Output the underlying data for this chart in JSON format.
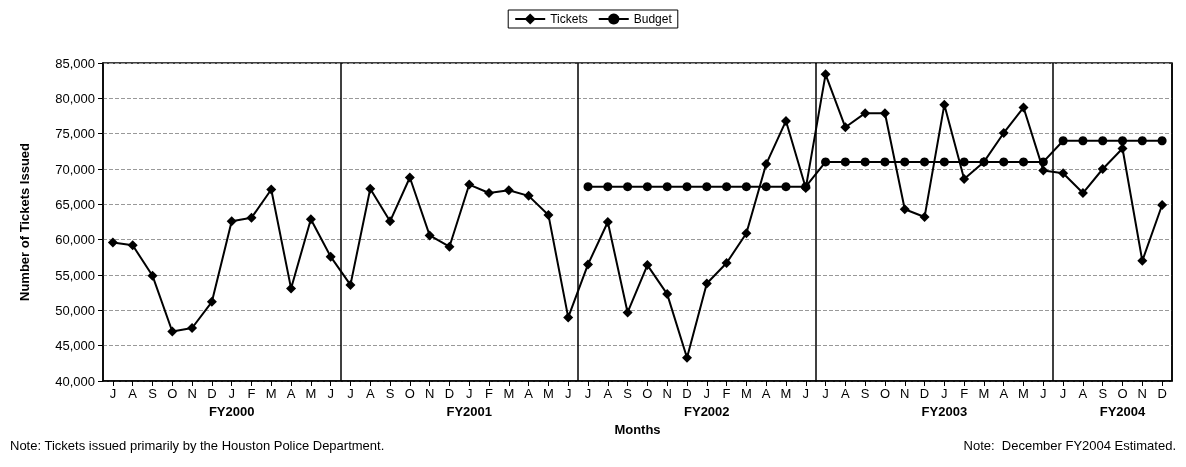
{
  "chart_data": {
    "type": "line",
    "xlabel": "Months",
    "ylabel": "Number of Tickets Issued",
    "legend": "top",
    "grid": "y",
    "categories": [
      "J",
      "A",
      "S",
      "O",
      "N",
      "D",
      "J",
      "F",
      "M",
      "A",
      "M",
      "J",
      "J",
      "A",
      "S",
      "O",
      "N",
      "D",
      "J",
      "F",
      "M",
      "A",
      "M",
      "J",
      "J",
      "A",
      "S",
      "O",
      "N",
      "D",
      "J",
      "F",
      "M",
      "A",
      "M",
      "J",
      "J",
      "A",
      "S",
      "O",
      "N",
      "D",
      "J",
      "F",
      "M",
      "A",
      "M",
      "J",
      "J",
      "A",
      "S",
      "O",
      "N",
      "D"
    ],
    "ylim": [
      40000,
      85000
    ],
    "yticks": [
      {
        "value": 40000,
        "label": "40,000"
      },
      {
        "value": 45000,
        "label": "45,000"
      },
      {
        "value": 50000,
        "label": "50,000"
      },
      {
        "value": 55000,
        "label": "55,000"
      },
      {
        "value": 60000,
        "label": "60,000"
      },
      {
        "value": 65000,
        "label": "65,000"
      },
      {
        "value": 70000,
        "label": "70,000"
      },
      {
        "value": 75000,
        "label": "75,000"
      },
      {
        "value": 80000,
        "label": "80,000"
      },
      {
        "value": 85000,
        "label": "85,000"
      }
    ],
    "annotations": [
      "FY2000",
      "FY2001",
      "FY2002",
      "FY2003",
      "FY2004",
      "Note: Tickets issued primarily by the Houston Police Department.",
      "Note:  December FY2004 Estimated."
    ],
    "series": [
      {
        "name": "Tickets",
        "color": "#000000",
        "marker": "diamond",
        "values": [
          59600,
          59200,
          54900,
          47000,
          47500,
          51200,
          62600,
          63100,
          67100,
          53100,
          62900,
          57600,
          53600,
          67200,
          62600,
          68800,
          60600,
          59000,
          67800,
          66600,
          67000,
          66200,
          63500,
          49000,
          56500,
          62500,
          49700,
          56400,
          52300,
          43300,
          53800,
          56700,
          60900,
          70700,
          76800,
          67300,
          83400,
          75900,
          77900,
          77900,
          64300,
          63200,
          79100,
          68600,
          71000,
          75100,
          78700,
          69800,
          69400,
          66600,
          70000,
          72900,
          57000,
          64900
        ]
      },
      {
        "name": "Budget",
        "color": "#000000",
        "marker": "circle",
        "values": [
          null,
          null,
          null,
          null,
          null,
          null,
          null,
          null,
          null,
          null,
          null,
          null,
          null,
          null,
          null,
          null,
          null,
          null,
          null,
          null,
          null,
          null,
          null,
          null,
          67500,
          67500,
          67500,
          67500,
          67500,
          67500,
          67500,
          67500,
          67500,
          67500,
          67500,
          67500,
          71000,
          71000,
          71000,
          71000,
          71000,
          71000,
          71000,
          71000,
          71000,
          71000,
          71000,
          71000,
          74000,
          74000,
          74000,
          74000,
          74000,
          74000
        ]
      }
    ]
  }
}
